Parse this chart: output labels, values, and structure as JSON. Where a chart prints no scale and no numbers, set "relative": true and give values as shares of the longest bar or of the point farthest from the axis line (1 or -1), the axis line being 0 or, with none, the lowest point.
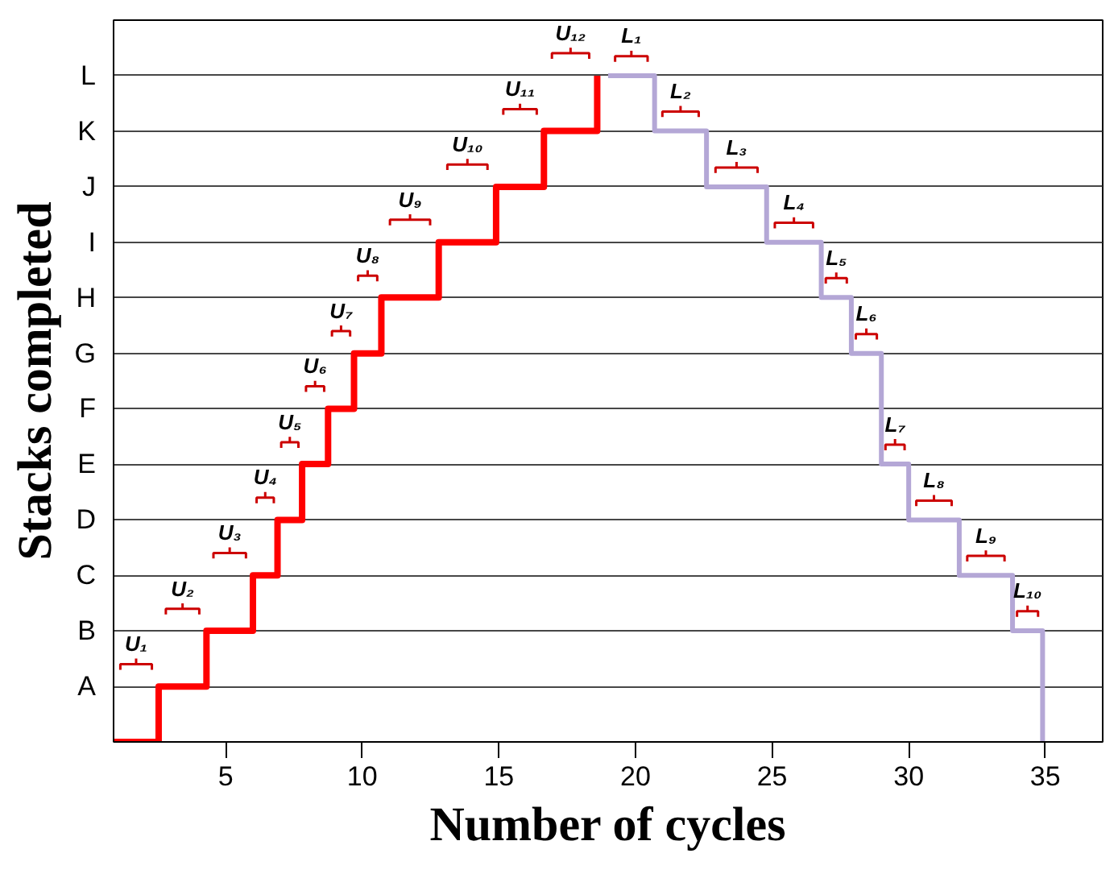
{
  "chart_data": {
    "type": "step",
    "xlabel": "Number of cycles",
    "ylabel": "Stacks completed",
    "xlim": [
      0.9,
      37.1
    ],
    "xticks": [
      5,
      10,
      15,
      20,
      25,
      30,
      35
    ],
    "y_categories": [
      "L",
      "K",
      "J",
      "I",
      "H",
      "G",
      "F",
      "E",
      "D",
      "C",
      "B",
      "A",
      null
    ],
    "grid": "y",
    "relative": true,
    "series": [
      {
        "color": "#ff0000",
        "x": [
          0.9,
          2.55,
          4.3,
          6.0,
          6.9,
          7.8,
          8.75,
          9.7,
          10.7,
          12.8,
          14.9,
          16.65,
          18.6
        ],
        "values": [
          0,
          0.083,
          0.167,
          0.25,
          0.333,
          0.417,
          0.5,
          0.583,
          0.667,
          0.75,
          0.833,
          0.917,
          1
        ]
      },
      {
        "color": "#b4a7d6",
        "x": [
          19.0,
          20.7,
          22.6,
          24.8,
          26.8,
          27.9,
          29.0,
          30.0,
          31.85,
          33.8,
          34.9
        ],
        "values": [
          1,
          0.917,
          0.833,
          0.75,
          0.667,
          0.583,
          0.417,
          0.333,
          0.25,
          0.167,
          0
        ]
      }
    ],
    "annotations": [
      "U₁",
      "U₂",
      "U₃",
      "U₄",
      "U₅",
      "U₆",
      "U₇",
      "U₈",
      "U₉",
      "U₁₀",
      "U₁₁",
      "U₁₂",
      "L₁",
      "L₂",
      "L₃",
      "L₄",
      "L₅",
      "L₆",
      "L₇",
      "L₈",
      "L₉",
      "L₁₀"
    ]
  }
}
